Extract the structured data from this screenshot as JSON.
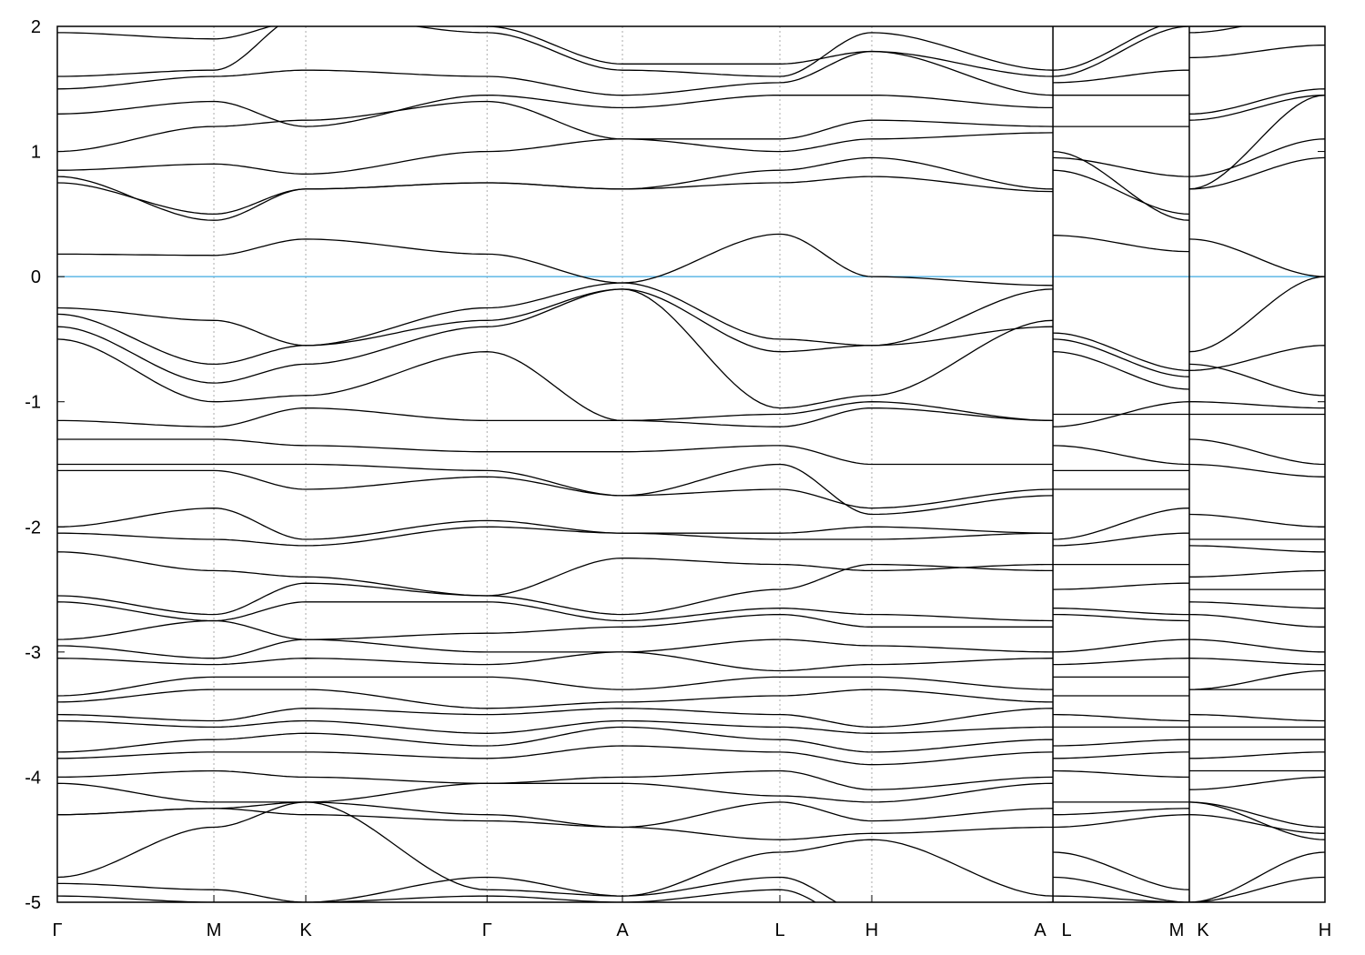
{
  "chart_data": {
    "type": "line",
    "title": "",
    "xlabel": "",
    "ylabel": "",
    "ylim": [
      -5,
      2
    ],
    "yticks": [
      -5,
      -4,
      -3,
      -2,
      -1,
      0,
      1,
      2
    ],
    "ytick_labels": [
      "-5",
      "-4",
      "-3",
      "-2",
      "-1",
      "0",
      "1",
      "2"
    ],
    "xlim": [
      0,
      1
    ],
    "kpath_nodes": [
      {
        "label": "Γ",
        "k": 0
      },
      {
        "label": "M",
        "k": 0.1235
      },
      {
        "label": "K",
        "k": 0.196
      },
      {
        "label": "Γ",
        "k": 0.339
      },
      {
        "label": "A",
        "k": 0.4458
      },
      {
        "label": "L",
        "k": 0.57
      },
      {
        "label": "H",
        "k": 0.6425
      },
      {
        "label": "A",
        "k": 0.7854
      },
      {
        "label": "L",
        "k": 0.7854
      },
      {
        "label": "M",
        "k": 0.893
      },
      {
        "label": "K",
        "k": 0.893
      },
      {
        "label": "H",
        "k": 1.0
      }
    ],
    "path_breaks": [
      "A|L",
      "M|K"
    ],
    "fermi_level": 0,
    "colors": {
      "bands": "#000000",
      "fermi_line": "#3fa9e0",
      "grid": "#aaaaaa"
    },
    "grid": "vertical dashed at high-symmetry points",
    "bands": [
      [
        0.18,
        0.17,
        0.3,
        0.18,
        -0.05,
        0.34,
        0.0,
        -0.07,
        0.33,
        0.2,
        0.3,
        0.0
      ],
      [
        -0.25,
        -0.35,
        -0.55,
        -0.25,
        -0.05,
        -0.5,
        -0.55,
        -0.1,
        -0.5,
        -0.8,
        -0.6,
        0.0
      ],
      [
        -0.3,
        -0.7,
        -0.55,
        -0.35,
        -0.1,
        -0.6,
        -0.55,
        -0.4,
        -0.45,
        -0.75,
        -0.75,
        -0.55
      ],
      [
        -0.4,
        -0.85,
        -0.7,
        -0.4,
        -0.1,
        -1.05,
        -0.95,
        -0.35,
        -0.6,
        -0.9,
        -0.7,
        -0.95
      ],
      [
        -0.5,
        -1.0,
        -0.95,
        -0.6,
        -1.15,
        -1.1,
        -1.0,
        -1.15,
        -1.2,
        -1.0,
        -1.0,
        -1.05
      ],
      [
        -1.15,
        -1.2,
        -1.05,
        -1.15,
        -1.15,
        -1.2,
        -1.05,
        -1.15,
        -1.1,
        -1.1,
        -1.1,
        -1.1
      ],
      [
        -1.3,
        -1.3,
        -1.35,
        -1.4,
        -1.4,
        -1.35,
        -1.5,
        -1.5,
        -1.35,
        -1.5,
        -1.3,
        -1.5
      ],
      [
        -1.5,
        -1.5,
        -1.5,
        -1.55,
        -1.75,
        -1.5,
        -1.9,
        -1.75,
        -1.55,
        -1.55,
        -1.5,
        -1.6
      ],
      [
        -1.55,
        -1.55,
        -1.7,
        -1.6,
        -1.75,
        -1.7,
        -1.85,
        -1.7,
        -1.7,
        -1.7,
        -1.9,
        -2.0
      ],
      [
        -2.0,
        -1.85,
        -2.1,
        -1.95,
        -2.05,
        -2.05,
        -2.0,
        -2.05,
        -2.1,
        -1.85,
        -2.1,
        -2.1
      ],
      [
        -2.05,
        -2.1,
        -2.15,
        -2.0,
        -2.05,
        -2.1,
        -2.1,
        -2.05,
        -2.15,
        -2.05,
        -2.15,
        -2.2
      ],
      [
        -2.2,
        -2.35,
        -2.4,
        -2.55,
        -2.25,
        -2.3,
        -2.35,
        -2.3,
        -2.3,
        -2.3,
        -2.4,
        -2.35
      ],
      [
        -2.55,
        -2.7,
        -2.45,
        -2.55,
        -2.7,
        -2.5,
        -2.3,
        -2.35,
        -2.5,
        -2.45,
        -2.5,
        -2.5
      ],
      [
        -2.6,
        -2.75,
        -2.6,
        -2.6,
        -2.75,
        -2.65,
        -2.7,
        -2.75,
        -2.65,
        -2.7,
        -2.6,
        -2.65
      ],
      [
        -2.9,
        -2.75,
        -2.9,
        -2.85,
        -2.8,
        -2.7,
        -2.8,
        -2.8,
        -2.7,
        -2.75,
        -2.7,
        -2.8
      ],
      [
        -2.95,
        -3.05,
        -2.9,
        -3.0,
        -3.0,
        -2.9,
        -2.95,
        -3.0,
        -3.0,
        -2.9,
        -2.9,
        -3.0
      ],
      [
        -3.05,
        -3.1,
        -3.05,
        -3.1,
        -3.0,
        -3.15,
        -3.1,
        -3.05,
        -3.1,
        -3.05,
        -3.05,
        -3.1
      ],
      [
        -3.35,
        -3.2,
        -3.2,
        -3.2,
        -3.3,
        -3.2,
        -3.2,
        -3.3,
        -3.2,
        -3.2,
        -3.3,
        -3.15
      ],
      [
        -3.4,
        -3.3,
        -3.3,
        -3.45,
        -3.4,
        -3.35,
        -3.3,
        -3.4,
        -3.35,
        -3.35,
        -3.3,
        -3.3
      ],
      [
        -3.5,
        -3.55,
        -3.45,
        -3.5,
        -3.45,
        -3.5,
        -3.6,
        -3.45,
        -3.5,
        -3.55,
        -3.5,
        -3.55
      ],
      [
        -3.55,
        -3.6,
        -3.55,
        -3.65,
        -3.55,
        -3.6,
        -3.65,
        -3.6,
        -3.6,
        -3.6,
        -3.6,
        -3.6
      ],
      [
        -3.8,
        -3.7,
        -3.65,
        -3.75,
        -3.6,
        -3.7,
        -3.8,
        -3.7,
        -3.75,
        -3.7,
        -3.7,
        -3.7
      ],
      [
        -3.85,
        -3.8,
        -3.8,
        -3.85,
        -3.75,
        -3.8,
        -3.9,
        -3.8,
        -3.85,
        -3.8,
        -3.85,
        -3.8
      ],
      [
        -4.0,
        -3.95,
        -4.0,
        -4.05,
        -4.0,
        -3.95,
        -4.1,
        -4.0,
        -3.95,
        -4.0,
        -3.95,
        -3.95
      ],
      [
        -4.05,
        -4.2,
        -4.2,
        -4.05,
        -4.05,
        -4.15,
        -4.2,
        -4.05,
        -4.2,
        -4.2,
        -4.1,
        -4.0
      ],
      [
        -4.3,
        -4.25,
        -4.2,
        -4.3,
        -4.4,
        -4.2,
        -4.35,
        -4.25,
        -4.3,
        -4.25,
        -4.2,
        -4.4
      ],
      [
        -4.3,
        -4.25,
        -4.3,
        -4.35,
        -4.4,
        -4.5,
        -4.45,
        -4.4,
        -4.4,
        -4.3,
        -4.3,
        -4.45
      ],
      [
        -4.8,
        -4.4,
        -4.2,
        -4.9,
        -4.95,
        -4.6,
        -4.5,
        -4.95,
        -4.6,
        -4.9,
        -4.2,
        -4.5
      ],
      [
        -4.85,
        -4.9,
        -5.0,
        -4.8,
        -4.95,
        -4.8,
        -5.1,
        -5.0,
        -4.8,
        -5.0,
        -5.0,
        -4.6
      ],
      [
        -4.95,
        -5.0,
        -5.0,
        -4.95,
        -5.0,
        -4.9,
        -5.2,
        -5.0,
        -4.95,
        -5.0,
        -5.0,
        -4.8
      ],
      [
        0.75,
        0.5,
        0.7,
        0.75,
        0.7,
        0.85,
        0.95,
        0.7,
        0.95,
        0.8,
        0.8,
        1.1
      ],
      [
        0.8,
        0.45,
        0.7,
        0.75,
        0.7,
        0.75,
        0.8,
        0.68,
        0.85,
        0.5,
        0.7,
        0.95
      ],
      [
        0.85,
        0.9,
        0.82,
        1.0,
        1.1,
        1.0,
        1.1,
        1.15,
        1.0,
        0.45,
        0.7,
        1.45
      ],
      [
        1.0,
        1.2,
        1.25,
        1.4,
        1.1,
        1.1,
        1.25,
        1.2,
        1.2,
        1.2,
        1.25,
        1.45
      ],
      [
        1.3,
        1.4,
        1.2,
        1.45,
        1.35,
        1.45,
        1.45,
        1.35,
        1.45,
        1.45,
        1.3,
        1.5
      ],
      [
        1.5,
        1.6,
        1.65,
        1.6,
        1.45,
        1.55,
        1.8,
        1.45,
        1.55,
        1.65,
        1.75,
        1.85
      ],
      [
        1.6,
        1.65,
        2.1,
        1.95,
        1.65,
        1.6,
        1.95,
        1.65,
        1.6,
        2.0,
        2.0,
        2.0
      ],
      [
        1.95,
        1.9,
        2.05,
        2.0,
        1.7,
        1.7,
        1.8,
        1.6,
        1.65,
        2.05,
        1.95,
        2.1
      ]
    ]
  }
}
